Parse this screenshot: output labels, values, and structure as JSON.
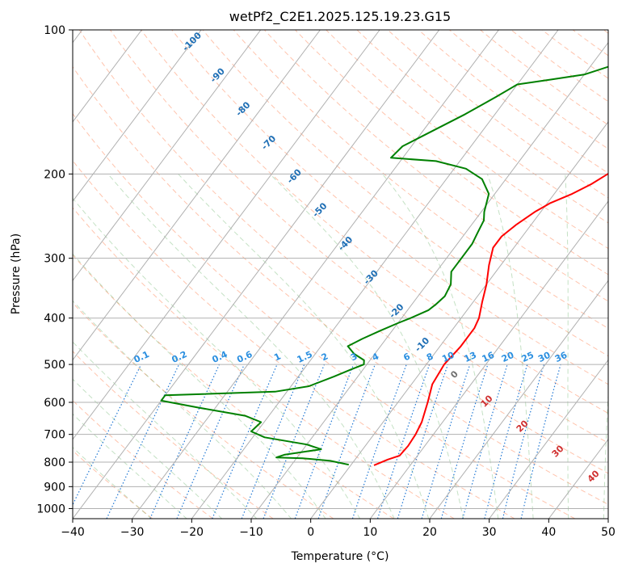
{
  "chart_data": {
    "type": "line",
    "title": "wetPf2_C2E1.2025.125.19.23.G15",
    "xlabel": "Temperature (°C)",
    "ylabel": "Pressure (hPa)",
    "xlim": [
      -40,
      50
    ],
    "ylim": [
      1050,
      100
    ],
    "y_scale": "log",
    "x_ticks": [
      -40,
      -30,
      -20,
      -10,
      0,
      10,
      20,
      30,
      40,
      50
    ],
    "y_ticks": [
      100,
      200,
      300,
      400,
      500,
      600,
      700,
      800,
      900,
      1000
    ],
    "grid": true,
    "isotherms_skewed": true,
    "series": [
      {
        "color": "#ff0000",
        "points": [
          [
            3.9,
            812
          ],
          [
            5.5,
            790
          ],
          [
            7.0,
            775
          ],
          [
            7.2,
            740
          ],
          [
            7.0,
            700
          ],
          [
            6.5,
            660
          ],
          [
            5.0,
            600
          ],
          [
            3.5,
            550
          ],
          [
            3.0,
            500
          ],
          [
            3.5,
            460
          ],
          [
            3.5,
            420
          ],
          [
            3.0,
            400
          ],
          [
            1.5,
            370
          ],
          [
            0.0,
            340
          ],
          [
            -2.0,
            310
          ],
          [
            -3.5,
            285
          ],
          [
            -3.5,
            270
          ],
          [
            -2.5,
            255
          ],
          [
            -1.0,
            240
          ],
          [
            0.5,
            230
          ],
          [
            3.0,
            220
          ],
          [
            5.0,
            210
          ],
          [
            6.5,
            200
          ],
          [
            8.5,
            185
          ],
          [
            10.5,
            170
          ],
          [
            11.5,
            160
          ],
          [
            12.0,
            150
          ],
          [
            13.0,
            140
          ],
          [
            14.5,
            130
          ],
          [
            14.5,
            122
          ],
          [
            14.0,
            116
          ],
          [
            14.0,
            110
          ],
          [
            15.0,
            105
          ],
          [
            16.0,
            100
          ]
        ]
      },
      {
        "color": "#008000",
        "points": [
          [
            -0.4,
            810
          ],
          [
            -4.0,
            795
          ],
          [
            -9.0,
            785
          ],
          [
            -13.5,
            782
          ],
          [
            -12.5,
            772
          ],
          [
            -7.0,
            752
          ],
          [
            -10.0,
            735
          ],
          [
            -18.0,
            710
          ],
          [
            -21.0,
            690
          ],
          [
            -20.5,
            660
          ],
          [
            -24.0,
            640
          ],
          [
            -33.0,
            615
          ],
          [
            -40.0,
            595
          ],
          [
            -40.0,
            580
          ],
          [
            -22.0,
            570
          ],
          [
            -17.0,
            555
          ],
          [
            -14.0,
            530
          ],
          [
            -12.0,
            512
          ],
          [
            -10.5,
            500
          ],
          [
            -11.0,
            490
          ],
          [
            -13.5,
            475
          ],
          [
            -15.5,
            458
          ],
          [
            -14.0,
            442
          ],
          [
            -12.0,
            425
          ],
          [
            -10.0,
            410
          ],
          [
            -8.5,
            400
          ],
          [
            -6.5,
            385
          ],
          [
            -6.0,
            375
          ],
          [
            -5.5,
            360
          ],
          [
            -6.0,
            340
          ],
          [
            -7.5,
            320
          ],
          [
            -7.5,
            300
          ],
          [
            -7.5,
            280
          ],
          [
            -8.0,
            265
          ],
          [
            -8.5,
            250
          ],
          [
            -9.5,
            240
          ],
          [
            -11.0,
            220
          ],
          [
            -14.0,
            205
          ],
          [
            -18.0,
            195
          ],
          [
            -24.0,
            188
          ],
          [
            -32.0,
            185
          ],
          [
            -31.5,
            175
          ],
          [
            -29.0,
            165
          ],
          [
            -25.0,
            150
          ],
          [
            -22.0,
            138
          ],
          [
            -20.0,
            130
          ],
          [
            -15.0,
            127
          ],
          [
            -10.0,
            124
          ],
          [
            -6.0,
            118
          ],
          [
            -3.0,
            110
          ],
          [
            -1.0,
            104
          ],
          [
            0.0,
            100
          ]
        ]
      }
    ],
    "dry_adiabat_labels": [
      "-100",
      "-90",
      "-80",
      "-70",
      "-60",
      "-50",
      "-40",
      "-30",
      "-20",
      "-10",
      "0",
      "10",
      "20",
      "30",
      "40"
    ],
    "mixing_ratio_labels": [
      "0.1",
      "0.2",
      "0.4",
      "0.6",
      "1",
      "1.5",
      "2",
      "3",
      "4",
      "6",
      "8",
      "10",
      "13",
      "16",
      "20",
      "25",
      "30",
      "36"
    ]
  }
}
